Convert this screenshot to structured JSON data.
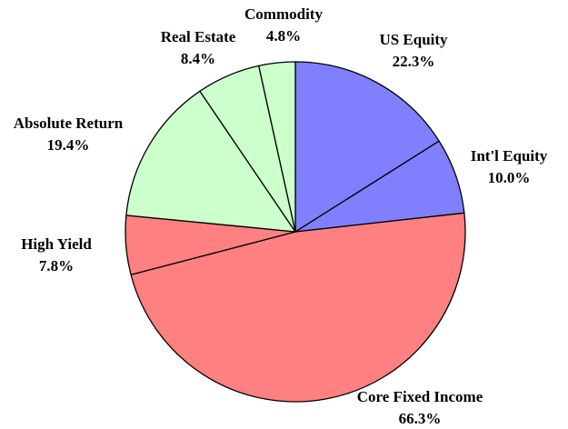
{
  "chart_data": {
    "type": "pie",
    "categories": [
      "US Equity",
      "Int'l Equity",
      "Core Fixed Income",
      "High Yield",
      "Absolute Return",
      "Real Estate",
      "Commodity"
    ],
    "values": [
      22.3,
      10.0,
      66.3,
      7.8,
      19.4,
      8.4,
      4.8
    ],
    "value_labels": [
      "22.3%",
      "10.0%",
      "66.3%",
      "7.8%",
      "19.4%",
      "8.4%",
      "4.8%"
    ],
    "colors": [
      "#8080ff",
      "#8080ff",
      "#ff8080",
      "#ff8080",
      "#ccffcc",
      "#ccffcc",
      "#ccffcc"
    ]
  }
}
